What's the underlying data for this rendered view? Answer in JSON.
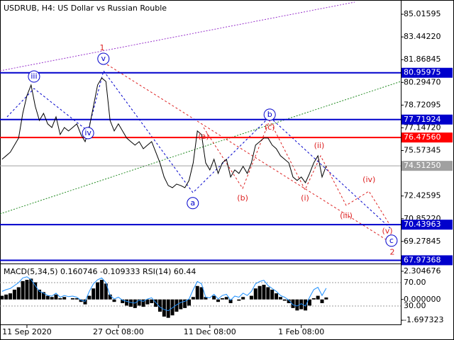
{
  "chart_data": [
    {
      "type": "line",
      "title": "USDRUB, H4:  US Dollar vs Russian Rouble",
      "categories": [
        null,
        null,
        null,
        null,
        null,
        null,
        "11 Sep 2020",
        null,
        null,
        null,
        null,
        null,
        null,
        null,
        null,
        null,
        null,
        null,
        null,
        null,
        null,
        null,
        null,
        null,
        null,
        null,
        null,
        null,
        "27 Oct 08:00",
        null,
        null,
        null,
        null,
        null,
        null,
        null,
        null,
        null,
        null,
        null,
        null,
        null,
        null,
        null,
        null,
        null,
        null,
        null,
        null,
        null,
        "11 Dec 08:00",
        null,
        null,
        null,
        null,
        null,
        null,
        null,
        null,
        null,
        null,
        null,
        null,
        null,
        null,
        null,
        null,
        null,
        null,
        null,
        null,
        null,
        "1 Feb 08:00",
        null,
        null,
        null,
        null,
        null,
        null
      ],
      "series": [
        {
          "name": "USDRUB",
          "color": "#000000",
          "values": [
            74.97,
            75.21,
            75.46,
            75.95,
            76.44,
            78.15,
            79.38,
            80.11,
            78.64,
            77.66,
            78.15,
            77.42,
            77.17,
            77.91,
            76.68,
            77.17,
            76.93,
            77.17,
            77.42,
            76.68,
            76.19,
            77.17,
            78.64,
            80.11,
            80.6,
            80.36,
            77.66,
            76.93,
            77.42,
            76.93,
            76.44,
            76.19,
            75.95,
            76.19,
            75.7,
            75.95,
            76.19,
            75.46,
            74.72,
            73.74,
            73.15,
            73.0,
            73.25,
            73.15,
            73.0,
            73.5,
            74.72,
            76.93,
            76.68,
            74.72,
            74.23,
            74.97,
            73.99,
            74.72,
            74.97,
            73.74,
            74.23,
            73.99,
            74.48,
            73.99,
            74.72,
            75.95,
            76.19,
            76.44,
            76.44,
            75.95,
            75.7,
            75.21,
            74.97,
            74.72,
            73.74,
            73.5,
            73.74,
            73.35,
            73.99,
            74.72,
            75.21,
            73.74,
            74.51
          ]
        }
      ],
      "ylim": [
        67.75,
        86.0
      ],
      "yticks": [
        {
          "value": 85.01595,
          "label": "85.01595"
        },
        {
          "value": 83.4422,
          "label": "83.44220"
        },
        {
          "value": 81.86845,
          "label": "81.86845"
        },
        {
          "value": 80.2947,
          "label": "80.29470"
        },
        {
          "value": 78.72095,
          "label": "78.72095"
        },
        {
          "value": 77.1472,
          "label": "77.14720"
        },
        {
          "value": 75.57345,
          "label": "75.57345"
        },
        {
          "value": 72.42595,
          "label": "72.42595"
        },
        {
          "value": 70.8522,
          "label": "70.85220"
        },
        {
          "value": 69.27845,
          "label": "69.27845"
        }
      ],
      "levels": [
        {
          "value": 80.95975,
          "color": "#0000cc"
        },
        {
          "value": 77.71924,
          "color": "#0000cc"
        },
        {
          "value": {
            "value": 76.4756,
            "label": "76.47560"
          },
          "color": "#ff0000"
        },
        {
          "value": {
            "value": 74.5125,
            "label": "74.51250"
          },
          "color": "#a0a0a0"
        },
        {
          "value": 70.43963,
          "color": "#0000cc"
        },
        {
          "value": 67.97368,
          "color": "#0000cc"
        }
      ],
      "annotations": [
        {
          "text": "1",
          "x": 24.1,
          "y": 82.66,
          "color": "#dd2222",
          "circle": false
        },
        {
          "text": "2",
          "x": 93.9,
          "y": 68.5,
          "color": "#dd2222",
          "circle": false
        },
        {
          "text": "iii",
          "x": 7.7,
          "y": 80.7,
          "color": "#0000cc",
          "circle": true
        },
        {
          "text": "v",
          "x": 24.4,
          "y": 81.93,
          "color": "#0000cc",
          "circle": true
        },
        {
          "text": "iv",
          "x": 20.7,
          "y": 76.78,
          "color": "#0000cc",
          "circle": true
        },
        {
          "text": "a",
          "x": 45.9,
          "y": 71.93,
          "color": "#0000cc",
          "circle": true
        },
        {
          "text": "b",
          "x": 64.4,
          "y": 78.06,
          "color": "#0000cc",
          "circle": true
        },
        {
          "text": "c",
          "x": 93.7,
          "y": 69.33,
          "color": "#0000cc",
          "circle": true
        },
        {
          "text": "(a)",
          "x": 48.5,
          "y": 76.54,
          "color": "#dd2222",
          "circle": false
        },
        {
          "text": "(b)",
          "x": 57.9,
          "y": 72.27,
          "color": "#dd2222",
          "circle": false
        },
        {
          "text": "(c)",
          "x": 64.4,
          "y": 77.17,
          "color": "#dd2222",
          "circle": false
        },
        {
          "text": "(i)",
          "x": 72.9,
          "y": 72.27,
          "color": "#dd2222",
          "circle": false
        },
        {
          "text": "(ii)",
          "x": 76.3,
          "y": 75.9,
          "color": "#dd2222",
          "circle": false
        },
        {
          "text": "(iii)",
          "x": 82.8,
          "y": 71.04,
          "color": "#dd2222",
          "circle": false
        },
        {
          "text": "(iv)",
          "x": 88.3,
          "y": 73.55,
          "color": "#dd2222",
          "circle": false
        },
        {
          "text": "(v)",
          "x": 92.7,
          "y": 69.97,
          "color": "#dd2222",
          "circle": false
        }
      ]
    },
    {
      "type": "bar",
      "title": "MACD(5,34,5) 0.160746 -0.109333 RSI(14) 60.44",
      "series": [
        {
          "name": "MACD",
          "color": "#000000",
          "values": [
            0.3,
            0.4,
            0.5,
            0.8,
            1.0,
            1.5,
            1.6,
            1.7,
            1.4,
            0.8,
            0.6,
            0.3,
            0.2,
            0.4,
            0.1,
            0.2,
            0.0,
            0.1,
            0.1,
            -0.2,
            -0.4,
            0.3,
            0.9,
            1.4,
            1.6,
            1.3,
            0.4,
            -0.2,
            0.0,
            -0.3,
            -0.5,
            -0.6,
            -0.7,
            -0.5,
            -0.6,
            -0.4,
            -0.3,
            -0.6,
            -1.0,
            -1.4,
            -1.5,
            -1.3,
            -1.0,
            -0.8,
            -0.7,
            -0.5,
            0.2,
            1.1,
            1.0,
            0.2,
            0.0,
            0.3,
            -0.2,
            0.1,
            0.2,
            -0.3,
            0.0,
            -0.1,
            0.2,
            0.0,
            0.3,
            0.9,
            1.1,
            1.2,
            1.0,
            0.8,
            0.5,
            0.2,
            -0.1,
            -0.3,
            -0.7,
            -0.9,
            -0.8,
            -0.9,
            -0.5,
            0.1,
            0.3,
            -0.3,
            0.16
          ]
        },
        {
          "name": "RSI",
          "color": "#1e90ff",
          "axis": "y2",
          "values": [
            55,
            58,
            60,
            65,
            70,
            78,
            80,
            75,
            65,
            55,
            52,
            48,
            47,
            52,
            45,
            48,
            46,
            47,
            45,
            40,
            38,
            55,
            68,
            75,
            78,
            70,
            48,
            42,
            45,
            40,
            38,
            36,
            35,
            40,
            38,
            42,
            44,
            36,
            28,
            24,
            22,
            27,
            32,
            36,
            38,
            42,
            58,
            72,
            68,
            45,
            44,
            50,
            42,
            48,
            50,
            40,
            47,
            45,
            52,
            48,
            55,
            68,
            72,
            74,
            65,
            60,
            55,
            48,
            45,
            40,
            32,
            30,
            34,
            30,
            45,
            58,
            62,
            48,
            60.44
          ]
        }
      ],
      "ylim": [
        -2.04,
        2.88
      ],
      "yticks": [
        2.304676,
        {
          "value": 0,
          "label": "0.000000"
        },
        -1.697323
      ],
      "y2lim": [
        -1.5,
        101.5
      ],
      "y2ticks": [
        {
          "value": 70,
          "label": "70.00"
        },
        {
          "value": 30,
          "label": "30.00"
        }
      ]
    }
  ]
}
